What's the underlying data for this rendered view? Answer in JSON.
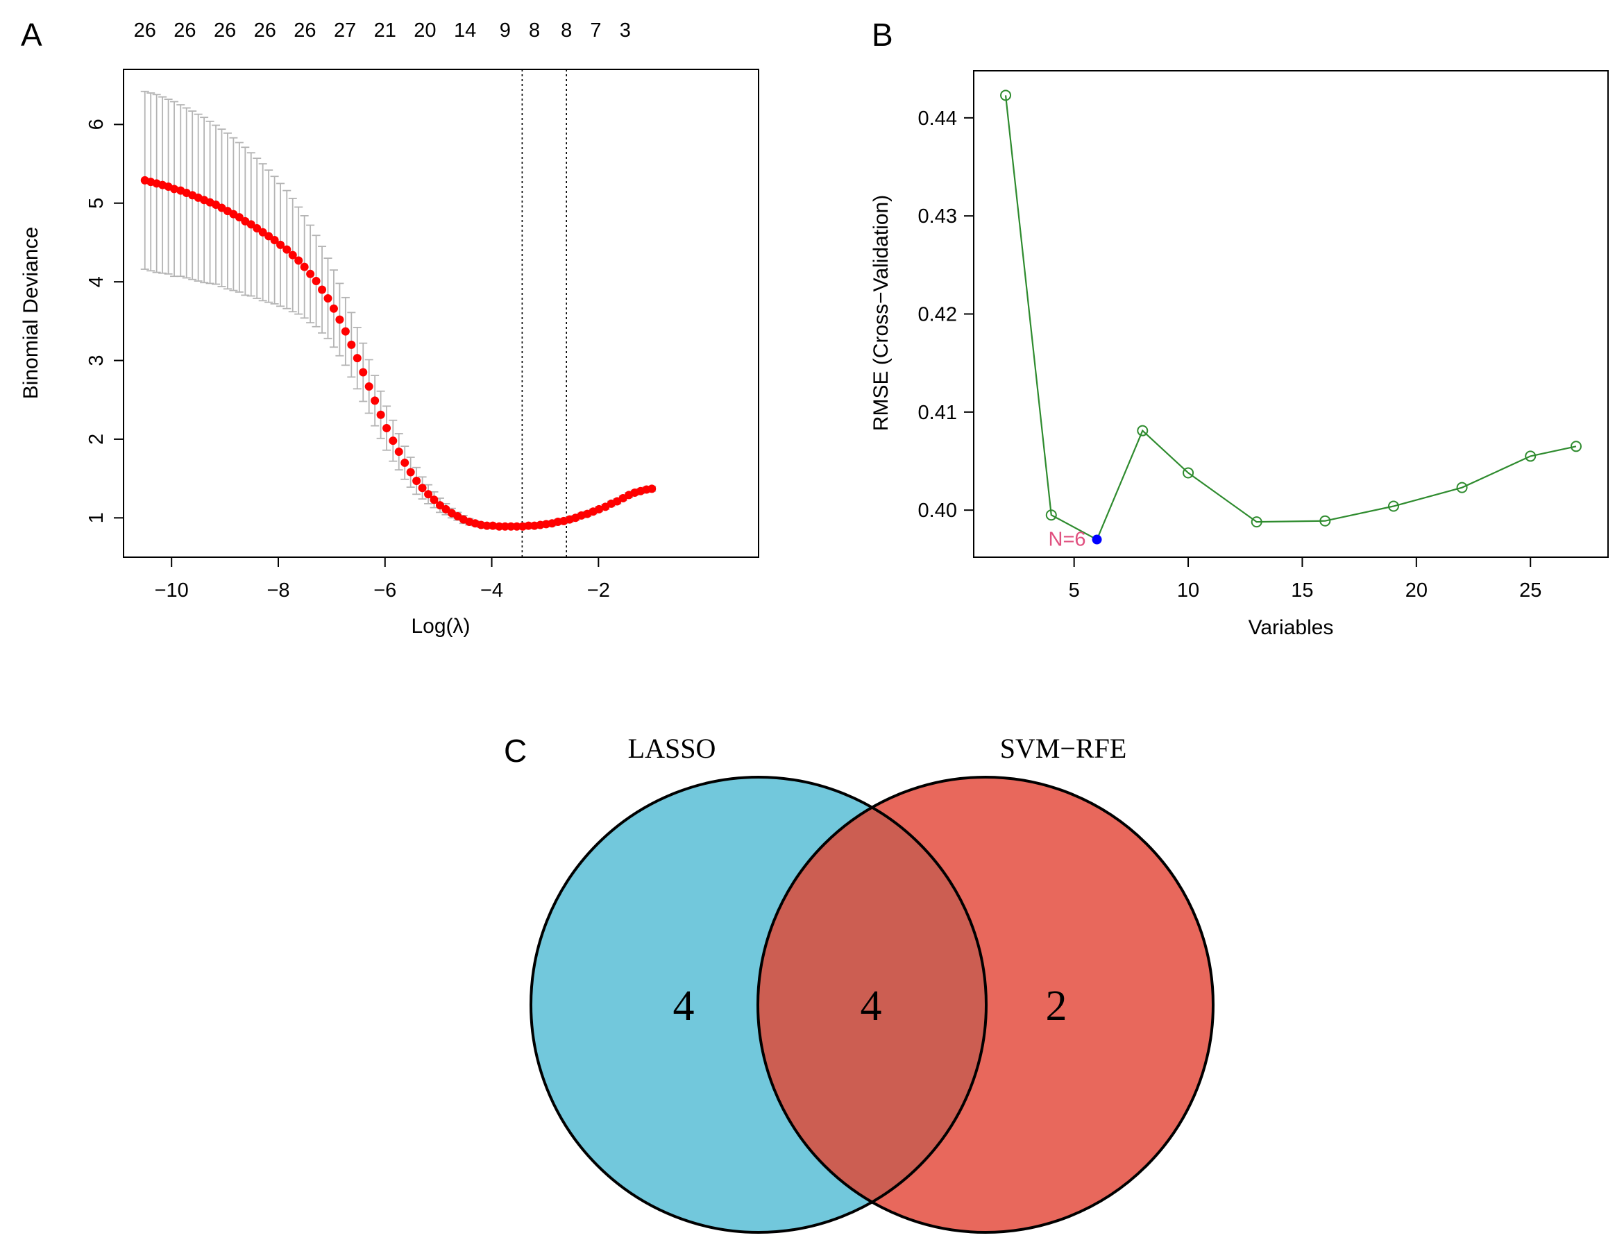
{
  "panels": {
    "a": "A",
    "b": "B",
    "c": "C"
  },
  "colors": {
    "red": "#ff0000",
    "errorbar": "#b4b4b4",
    "green": "#2e8b2e",
    "blue": "#0000ff",
    "annotation": "#e0507f",
    "lasso": "#72c8dc",
    "svm": "#e8685c",
    "overlap": "#cc5e52"
  },
  "chart_data": [
    {
      "id": "lasso_cv",
      "type": "scatter",
      "title": "",
      "xlabel": "Log(λ)",
      "ylabel": "Binomial Deviance",
      "xlim": [
        -10.9,
        1.0
      ],
      "ylim": [
        0.5,
        6.7
      ],
      "xticks": [
        -10,
        -8,
        -6,
        -4,
        -2
      ],
      "xtick_labels": [
        "−10",
        "−8",
        "−6",
        "−4",
        "−2"
      ],
      "yticks": [
        1,
        2,
        3,
        4,
        5,
        6
      ],
      "ytick_labels": [
        "1",
        "2",
        "3",
        "4",
        "5",
        "6"
      ],
      "top_axis": {
        "x": [
          -10.5,
          -9.75,
          -9.0,
          -8.25,
          -7.5,
          -6.75,
          -6.0,
          -5.25,
          -4.5,
          -3.75,
          -3.2,
          -2.6,
          -2.05,
          -1.5
        ],
        "labels": [
          "26",
          "26",
          "26",
          "26",
          "26",
          "27",
          "21",
          "20",
          "14",
          "9",
          "8",
          "8",
          "7",
          "3"
        ]
      },
      "vlines": [
        -3.43,
        -2.6
      ],
      "x": [
        -10.5,
        -10.39,
        -10.28,
        -10.17,
        -10.06,
        -9.95,
        -9.83,
        -9.72,
        -9.61,
        -9.5,
        -9.39,
        -9.28,
        -9.17,
        -9.06,
        -8.95,
        -8.84,
        -8.73,
        -8.62,
        -8.51,
        -8.4,
        -8.29,
        -8.18,
        -8.07,
        -7.96,
        -7.84,
        -7.73,
        -7.62,
        -7.51,
        -7.4,
        -7.29,
        -7.18,
        -7.07,
        -6.96,
        -6.85,
        -6.74,
        -6.63,
        -6.52,
        -6.41,
        -6.3,
        -6.19,
        -6.08,
        -5.97,
        -5.85,
        -5.74,
        -5.63,
        -5.52,
        -5.41,
        -5.3,
        -5.19,
        -5.08,
        -4.97,
        -4.86,
        -4.75,
        -4.64,
        -4.53,
        -4.42,
        -4.31,
        -4.2,
        -4.09,
        -3.98,
        -3.86,
        -3.75,
        -3.64,
        -3.53,
        -3.42,
        -3.31,
        -3.2,
        -3.09,
        -2.98,
        -2.87,
        -2.76,
        -2.65,
        -2.54,
        -2.43,
        -2.32,
        -2.21,
        -2.1,
        -1.99,
        -1.87,
        -1.76,
        -1.65,
        -1.54,
        -1.43,
        -1.32,
        -1.21,
        -1.1,
        -1.0
      ],
      "y": [
        5.29,
        5.27,
        5.25,
        5.23,
        5.21,
        5.18,
        5.16,
        5.13,
        5.1,
        5.07,
        5.04,
        5.01,
        4.98,
        4.94,
        4.9,
        4.86,
        4.82,
        4.77,
        4.73,
        4.68,
        4.63,
        4.58,
        4.53,
        4.47,
        4.41,
        4.34,
        4.27,
        4.19,
        4.1,
        4.01,
        3.9,
        3.79,
        3.66,
        3.52,
        3.37,
        3.2,
        3.03,
        2.85,
        2.67,
        2.49,
        2.31,
        2.14,
        1.98,
        1.84,
        1.7,
        1.58,
        1.47,
        1.38,
        1.3,
        1.23,
        1.16,
        1.11,
        1.06,
        1.02,
        0.98,
        0.95,
        0.93,
        0.91,
        0.9,
        0.9,
        0.89,
        0.89,
        0.89,
        0.89,
        0.89,
        0.9,
        0.9,
        0.91,
        0.92,
        0.93,
        0.95,
        0.96,
        0.98,
        1.0,
        1.03,
        1.05,
        1.08,
        1.11,
        1.14,
        1.18,
        1.21,
        1.25,
        1.29,
        1.32,
        1.34,
        1.36,
        1.37
      ],
      "y_upper": [
        6.42,
        6.4,
        6.38,
        6.35,
        6.32,
        6.29,
        6.25,
        6.21,
        6.17,
        6.13,
        6.09,
        6.04,
        5.99,
        5.94,
        5.89,
        5.83,
        5.77,
        5.71,
        5.64,
        5.57,
        5.5,
        5.42,
        5.34,
        5.25,
        5.16,
        5.06,
        4.95,
        4.84,
        4.72,
        4.59,
        4.45,
        4.3,
        4.15,
        3.98,
        3.8,
        3.61,
        3.42,
        3.22,
        3.01,
        2.81,
        2.61,
        2.42,
        2.24,
        2.07,
        1.91,
        1.77,
        1.64,
        1.52,
        1.42,
        1.33,
        1.25,
        1.18,
        1.12,
        1.07,
        1.03,
        0.99,
        0.96,
        0.94,
        0.93,
        0.92,
        0.92,
        0.92,
        0.92,
        0.92,
        0.92,
        0.93,
        0.93,
        0.94,
        0.95,
        0.96,
        0.98,
        0.99,
        1.01,
        1.03,
        1.06,
        1.08,
        1.11,
        1.14,
        1.17,
        1.21,
        1.24,
        1.28,
        1.32,
        1.35,
        1.37,
        1.39,
        1.4
      ],
      "y_lower": [
        4.16,
        4.14,
        4.12,
        4.11,
        4.1,
        4.07,
        4.07,
        4.05,
        4.03,
        4.01,
        3.99,
        3.98,
        3.97,
        3.94,
        3.91,
        3.89,
        3.87,
        3.83,
        3.82,
        3.79,
        3.76,
        3.74,
        3.72,
        3.69,
        3.66,
        3.62,
        3.59,
        3.54,
        3.48,
        3.43,
        3.35,
        3.28,
        3.17,
        3.06,
        2.94,
        2.79,
        2.64,
        2.48,
        2.33,
        2.17,
        2.01,
        1.86,
        1.72,
        1.61,
        1.49,
        1.39,
        1.3,
        1.24,
        1.18,
        1.13,
        1.07,
        1.04,
        1.0,
        0.97,
        0.93,
        0.91,
        0.9,
        0.88,
        0.87,
        0.88,
        0.86,
        0.86,
        0.86,
        0.86,
        0.86,
        0.87,
        0.87,
        0.88,
        0.89,
        0.9,
        0.92,
        0.93,
        0.95,
        0.97,
        1.0,
        1.02,
        1.05,
        1.08,
        1.11,
        1.15,
        1.18,
        1.22,
        1.26,
        1.29,
        1.31,
        1.33,
        1.34
      ]
    },
    {
      "id": "svm_rfe",
      "type": "line",
      "title": "",
      "xlabel": "Variables",
      "ylabel": "RMSE (Cross−Validation)",
      "xlim": [
        0.6,
        28.4
      ],
      "ylim": [
        0.3952,
        0.4448
      ],
      "xticks": [
        5,
        10,
        15,
        20,
        25
      ],
      "xtick_labels": [
        "5",
        "10",
        "15",
        "20",
        "25"
      ],
      "yticks": [
        0.4,
        0.41,
        0.42,
        0.43,
        0.44
      ],
      "ytick_labels": [
        "0.40",
        "0.41",
        "0.42",
        "0.43",
        "0.44"
      ],
      "x": [
        2,
        4,
        6,
        8,
        10,
        13,
        16,
        19,
        22,
        25,
        27
      ],
      "y": [
        0.4423,
        0.3995,
        0.397,
        0.4081,
        0.4038,
        0.3988,
        0.3989,
        0.4004,
        0.4023,
        0.4055,
        0.4065
      ],
      "highlight": {
        "x": 6,
        "y": 0.397,
        "label": "N=6"
      }
    }
  ],
  "venn": {
    "sets": [
      {
        "name": "LASSO",
        "only": "4"
      },
      {
        "name": "SVM−RFE",
        "only": "2"
      }
    ],
    "intersection": "4"
  }
}
